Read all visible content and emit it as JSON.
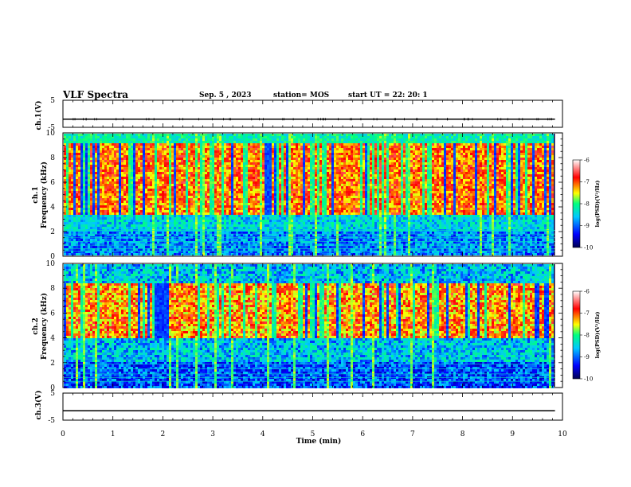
{
  "header": {
    "title": "VLF Spectra",
    "date": "Sep. 5 , 2023",
    "station": "station= MOS",
    "start": "start UT =  22: 20: 1"
  },
  "chart_data": [
    {
      "type": "line",
      "id": "ch1-waveform",
      "ylabel": "ch.1(V)",
      "ylim": [
        -5,
        5
      ],
      "yticks": [
        "5",
        "-5"
      ],
      "x": [
        0,
        9.85
      ],
      "values": [
        -2,
        -2
      ]
    },
    {
      "type": "heatmap",
      "id": "ch1-spectrogram",
      "ylabel": "ch.1\nFrequency (kHz)",
      "ylim": [
        0,
        10
      ],
      "yticks": [
        "0",
        "2",
        "4",
        "6",
        "8",
        "10"
      ],
      "xlim": [
        0,
        9.85
      ],
      "colorbar": {
        "label": "log(PSD)(V²/Hz)",
        "range": [
          -10,
          -6
        ],
        "ticks": [
          "-6",
          "-7",
          "-8",
          "-9",
          "-10"
        ]
      }
    },
    {
      "type": "heatmap",
      "id": "ch2-spectrogram",
      "ylabel": "ch.2\nFrequency (kHz)",
      "ylim": [
        0,
        10
      ],
      "yticks": [
        "0",
        "2",
        "4",
        "6",
        "8",
        "10"
      ],
      "xlim": [
        0,
        9.85
      ],
      "colorbar": {
        "label": "log(PSD)(V²/Hz)",
        "range": [
          -10,
          -6
        ],
        "ticks": [
          "-6",
          "-7",
          "-8",
          "-9",
          "-10"
        ]
      }
    },
    {
      "type": "line",
      "id": "ch3-waveform",
      "ylabel": "ch.3(V)",
      "ylim": [
        -5,
        5
      ],
      "yticks": [
        "5",
        "-5"
      ],
      "x": [
        0,
        9.85
      ],
      "values": [
        -1.5,
        -1.5
      ]
    }
  ],
  "xaxis": {
    "label": "Time (min)",
    "ticks": [
      "0",
      "1",
      "2",
      "3",
      "4",
      "5",
      "6",
      "7",
      "8",
      "9",
      "10"
    ],
    "xlim": [
      0,
      10
    ]
  },
  "colors": {
    "colormap": [
      "#000050",
      "#0000ff",
      "#00c8ff",
      "#00ff80",
      "#ffff00",
      "#ff0000",
      "#ffffff"
    ]
  }
}
